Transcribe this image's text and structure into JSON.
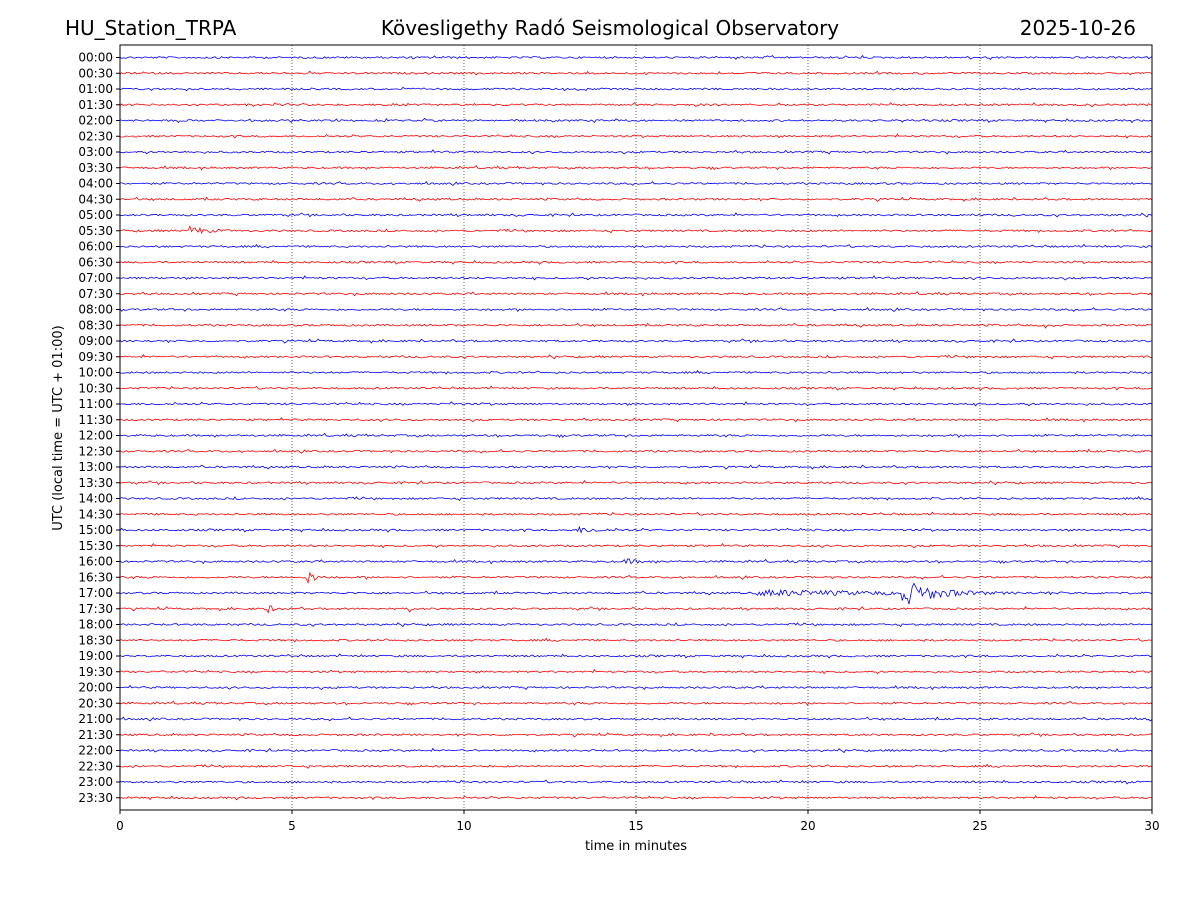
{
  "header": {
    "station": "HU_Station_TRPA",
    "observatory": "Kövesligethy Radó Seismological Observatory",
    "date": "2025-10-26"
  },
  "chart_data": {
    "type": "line",
    "title": "Kövesligethy Radó Seismological Observatory",
    "xlabel": "time in minutes",
    "ylabel": "UTC (local time = UTC + 01:00)",
    "xlim": [
      0,
      30
    ],
    "x_ticks": [
      "0",
      "5",
      "10",
      "15",
      "20",
      "25",
      "30"
    ],
    "x_tick_values": [
      0,
      5,
      10,
      15,
      20,
      25,
      30
    ],
    "grid": "vertical dotted at each x tick",
    "trace_colors": [
      "#0000ff",
      "#ff0000"
    ],
    "rows": [
      "00:00",
      "00:30",
      "01:00",
      "01:30",
      "02:00",
      "02:30",
      "03:00",
      "03:30",
      "04:00",
      "04:30",
      "05:00",
      "05:30",
      "06:00",
      "06:30",
      "07:00",
      "07:30",
      "08:00",
      "08:30",
      "09:00",
      "09:30",
      "10:00",
      "10:30",
      "11:00",
      "11:30",
      "12:00",
      "12:30",
      "13:00",
      "13:30",
      "14:00",
      "14:30",
      "15:00",
      "15:30",
      "16:00",
      "16:30",
      "17:00",
      "17:30",
      "18:00",
      "18:30",
      "19:00",
      "19:30",
      "20:00",
      "20:30",
      "21:00",
      "21:30",
      "22:00",
      "22:30",
      "23:00",
      "23:30"
    ],
    "events": [
      {
        "row": "05:30",
        "start_min": 2.0,
        "duration_min": 1.2,
        "amplitude": 5
      },
      {
        "row": "08:30",
        "start_min": 26.9,
        "duration_min": 0.3,
        "amplitude": 7
      },
      {
        "row": "11:00",
        "start_min": 9.6,
        "duration_min": 0.15,
        "amplitude": 4
      },
      {
        "row": "15:00",
        "start_min": 13.3,
        "duration_min": 1.6,
        "amplitude": 3
      },
      {
        "row": "16:00",
        "start_min": 14.6,
        "duration_min": 1.4,
        "amplitude": 2.5
      },
      {
        "row": "16:30",
        "start_min": 5.4,
        "duration_min": 0.6,
        "amplitude": 9
      },
      {
        "row": "17:00",
        "start_min": 18.4,
        "duration_min": 11.6,
        "amplitude": 3
      },
      {
        "row": "17:00",
        "start_min": 22.7,
        "duration_min": 2.6,
        "amplitude": 14
      },
      {
        "row": "17:30",
        "start_min": 4.2,
        "duration_min": 0.6,
        "amplitude": 6
      },
      {
        "row": "17:30",
        "start_min": 8.4,
        "duration_min": 0.2,
        "amplitude": 4
      }
    ]
  }
}
